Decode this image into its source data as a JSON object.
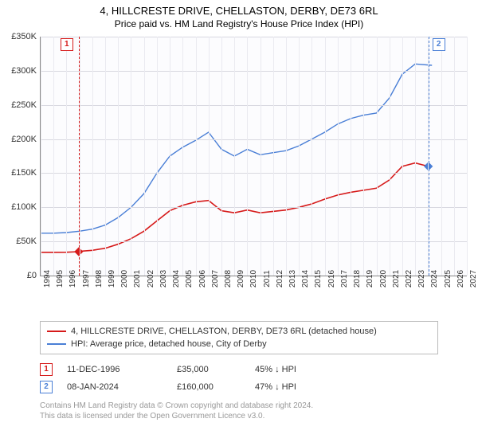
{
  "title": "4, HILLCRESTE DRIVE, CHELLASTON, DERBY, DE73 6RL",
  "subtitle": "Price paid vs. HM Land Registry's House Price Index (HPI)",
  "chart": {
    "type": "line",
    "background_color": "#fcfcfe",
    "grid_color_h": "#d8d8e0",
    "grid_color_v": "#eaeaf0",
    "axis_color": "#888888",
    "ylim": [
      0,
      350000
    ],
    "ytick_step": 50000,
    "yticks": [
      "£0",
      "£50K",
      "£100K",
      "£150K",
      "£200K",
      "£250K",
      "£300K",
      "£350K"
    ],
    "xlim": [
      1994,
      2027
    ],
    "xticks": [
      1994,
      1995,
      1996,
      1997,
      1998,
      1999,
      2000,
      2001,
      2002,
      2003,
      2004,
      2005,
      2006,
      2007,
      2008,
      2009,
      2010,
      2011,
      2012,
      2013,
      2014,
      2015,
      2016,
      2017,
      2018,
      2019,
      2020,
      2021,
      2022,
      2023,
      2024,
      2025,
      2026,
      2027
    ],
    "label_fontsize": 11,
    "series": [
      {
        "name": "property",
        "color": "#d61a1a",
        "width": 1.6,
        "x": [
          1994,
          1995,
          1996,
          1996.95,
          1997,
          1998,
          1999,
          2000,
          2001,
          2002,
          2003,
          2004,
          2005,
          2006,
          2007,
          2008,
          2009,
          2010,
          2011,
          2012,
          2013,
          2014,
          2015,
          2016,
          2017,
          2018,
          2019,
          2020,
          2021,
          2022,
          2023,
          2024.02
        ],
        "y": [
          34000,
          34000,
          34200,
          35000,
          35500,
          37000,
          40000,
          46000,
          54000,
          65000,
          80000,
          95000,
          103000,
          108000,
          110000,
          95000,
          92000,
          96000,
          92000,
          94000,
          96000,
          100000,
          105000,
          112000,
          118000,
          122000,
          125000,
          128000,
          140000,
          160000,
          165000,
          160000
        ]
      },
      {
        "name": "hpi",
        "color": "#4a7fd6",
        "width": 1.4,
        "x": [
          1994,
          1995,
          1996,
          1997,
          1998,
          1999,
          2000,
          2001,
          2002,
          2003,
          2004,
          2005,
          2006,
          2007,
          2008,
          2009,
          2010,
          2011,
          2012,
          2013,
          2014,
          2015,
          2016,
          2017,
          2018,
          2019,
          2020,
          2021,
          2022,
          2023,
          2024.3
        ],
        "y": [
          62000,
          62000,
          63000,
          65000,
          68000,
          74000,
          85000,
          100000,
          120000,
          150000,
          175000,
          188000,
          198000,
          210000,
          185000,
          175000,
          185000,
          177000,
          180000,
          183000,
          190000,
          200000,
          210000,
          222000,
          230000,
          235000,
          238000,
          260000,
          295000,
          310000,
          308000
        ]
      }
    ],
    "markers": [
      {
        "id": "1",
        "color": "#d61a1a",
        "x": 1996.95,
        "y": 35000,
        "box_side": "left"
      },
      {
        "id": "2",
        "color": "#4a7fd6",
        "x": 2024.02,
        "y": 160000,
        "box_side": "right"
      }
    ]
  },
  "legend": {
    "items": [
      {
        "color": "#d61a1a",
        "label": "4, HILLCRESTE DRIVE, CHELLASTON, DERBY, DE73 6RL (detached house)"
      },
      {
        "color": "#4a7fd6",
        "label": "HPI: Average price, detached house, City of Derby"
      }
    ]
  },
  "marker_info": [
    {
      "id": "1",
      "color": "#d61a1a",
      "date": "11-DEC-1996",
      "price": "£35,000",
      "pct": "45% ↓ HPI"
    },
    {
      "id": "2",
      "color": "#4a7fd6",
      "date": "08-JAN-2024",
      "price": "£160,000",
      "pct": "47% ↓ HPI"
    }
  ],
  "footer": {
    "line1": "Contains HM Land Registry data © Crown copyright and database right 2024.",
    "line2": "This data is licensed under the Open Government Licence v3.0."
  }
}
